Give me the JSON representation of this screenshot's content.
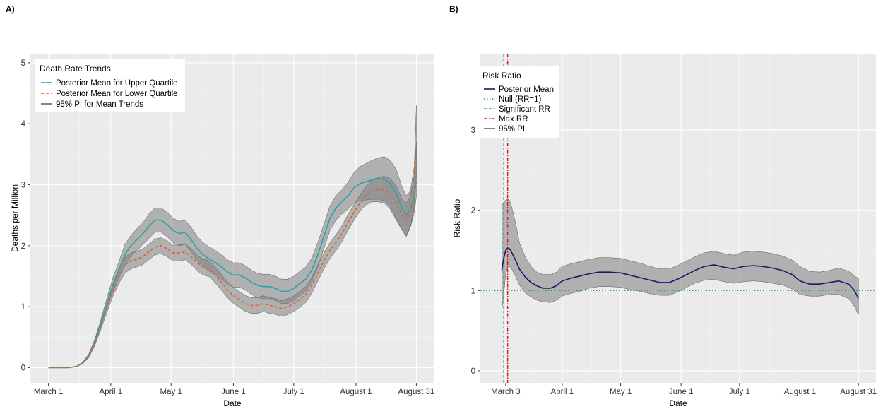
{
  "chart_data": [
    {
      "panel": "A)",
      "type": "line",
      "xlabel": "Date",
      "ylabel": "Deaths per Million",
      "xaxis": {
        "ticks": [
          {
            "day": 0,
            "label": "March 1"
          },
          {
            "day": 31,
            "label": "April 1"
          },
          {
            "day": 61,
            "label": "May 1"
          },
          {
            "day": 92,
            "label": "June 1"
          },
          {
            "day": 122,
            "label": "July 1"
          },
          {
            "day": 153,
            "label": "August 1"
          },
          {
            "day": 183,
            "label": "August 31"
          }
        ],
        "range_days": [
          -9,
          192
        ]
      },
      "ylim": [
        -0.25,
        5.15
      ],
      "yticks": [
        0,
        1,
        2,
        3,
        4,
        5
      ],
      "grid": true,
      "legend": {
        "title": "Death Rate Trends",
        "position": "top-left",
        "items": [
          {
            "label": "Posterior Mean for Upper Quartile",
            "color": "#2aa3a8",
            "dash": "solid"
          },
          {
            "label": "Posterior Mean for Lower Quartile",
            "color": "#e0622a",
            "dash": "dashed"
          },
          {
            "label": "95% PI for Mean Trends",
            "color": "#666666",
            "dash": "solid"
          }
        ]
      },
      "series": [
        {
          "name": "Posterior Mean for Upper Quartile",
          "color": "#2aa3a8",
          "dash": "solid",
          "x": [
            0,
            10,
            14,
            17,
            20,
            23,
            26,
            29,
            32,
            35,
            38,
            41,
            44,
            47,
            50,
            53,
            56,
            59,
            62,
            65,
            68,
            71,
            74,
            77,
            80,
            83,
            86,
            89,
            92,
            95,
            98,
            101,
            104,
            107,
            110,
            113,
            116,
            119,
            122,
            125,
            128,
            131,
            134,
            137,
            140,
            143,
            146,
            149,
            152,
            155,
            158,
            161,
            164,
            167,
            170,
            173,
            176,
            178,
            180,
            182,
            183
          ],
          "y": [
            0,
            0,
            0.02,
            0.08,
            0.2,
            0.42,
            0.72,
            1.05,
            1.35,
            1.6,
            1.85,
            2.0,
            2.1,
            2.2,
            2.32,
            2.42,
            2.42,
            2.35,
            2.25,
            2.2,
            2.22,
            2.1,
            1.95,
            1.85,
            1.78,
            1.72,
            1.65,
            1.57,
            1.52,
            1.52,
            1.47,
            1.4,
            1.35,
            1.33,
            1.33,
            1.3,
            1.25,
            1.25,
            1.3,
            1.38,
            1.45,
            1.6,
            1.85,
            2.15,
            2.45,
            2.62,
            2.72,
            2.82,
            2.95,
            3.02,
            3.05,
            3.08,
            3.1,
            3.1,
            3.02,
            2.85,
            2.6,
            2.5,
            2.6,
            2.8,
            3.05
          ],
          "pi_lower": [
            0,
            0,
            0.02,
            0.07,
            0.18,
            0.38,
            0.66,
            0.97,
            1.23,
            1.47,
            1.68,
            1.83,
            1.92,
            2.02,
            2.12,
            2.22,
            2.22,
            2.15,
            2.05,
            2.0,
            2.02,
            1.9,
            1.75,
            1.65,
            1.58,
            1.52,
            1.45,
            1.37,
            1.32,
            1.32,
            1.27,
            1.2,
            1.15,
            1.13,
            1.13,
            1.1,
            1.05,
            1.05,
            1.1,
            1.18,
            1.25,
            1.4,
            1.65,
            1.95,
            2.25,
            2.42,
            2.52,
            2.6,
            2.7,
            2.74,
            2.75,
            2.76,
            2.76,
            2.74,
            2.64,
            2.45,
            2.25,
            2.18,
            2.3,
            2.55,
            2.8
          ],
          "pi_upper": [
            0,
            0,
            0.02,
            0.09,
            0.22,
            0.46,
            0.78,
            1.13,
            1.47,
            1.73,
            2.02,
            2.17,
            2.28,
            2.38,
            2.52,
            2.62,
            2.62,
            2.55,
            2.45,
            2.4,
            2.42,
            2.3,
            2.15,
            2.05,
            1.98,
            1.92,
            1.85,
            1.77,
            1.72,
            1.72,
            1.67,
            1.6,
            1.55,
            1.53,
            1.53,
            1.5,
            1.45,
            1.45,
            1.5,
            1.58,
            1.65,
            1.8,
            2.05,
            2.35,
            2.65,
            2.82,
            2.92,
            3.04,
            3.2,
            3.3,
            3.35,
            3.4,
            3.44,
            3.46,
            3.4,
            3.25,
            2.95,
            2.82,
            2.9,
            3.3,
            4.3
          ]
        },
        {
          "name": "Posterior Mean for Lower Quartile",
          "color": "#e0622a",
          "dash": "dashed",
          "x": [
            0,
            10,
            14,
            17,
            20,
            23,
            26,
            29,
            32,
            35,
            38,
            41,
            44,
            47,
            50,
            53,
            56,
            59,
            62,
            65,
            68,
            71,
            74,
            77,
            80,
            83,
            86,
            89,
            92,
            95,
            98,
            101,
            104,
            107,
            110,
            113,
            116,
            119,
            122,
            125,
            128,
            131,
            134,
            137,
            140,
            143,
            146,
            149,
            152,
            155,
            158,
            161,
            164,
            167,
            170,
            173,
            176,
            178,
            180,
            182,
            183
          ],
          "y": [
            0,
            0,
            0.02,
            0.07,
            0.18,
            0.4,
            0.68,
            0.98,
            1.27,
            1.5,
            1.68,
            1.75,
            1.78,
            1.82,
            1.9,
            1.98,
            2.0,
            1.95,
            1.88,
            1.88,
            1.9,
            1.82,
            1.72,
            1.65,
            1.62,
            1.52,
            1.4,
            1.28,
            1.18,
            1.12,
            1.05,
            1.02,
            1.02,
            1.05,
            1.02,
            1.0,
            0.97,
            1.0,
            1.05,
            1.12,
            1.2,
            1.35,
            1.55,
            1.75,
            1.92,
            2.05,
            2.2,
            2.38,
            2.55,
            2.7,
            2.82,
            2.9,
            2.92,
            2.92,
            2.85,
            2.7,
            2.5,
            2.42,
            2.55,
            2.9,
            3.45
          ],
          "pi_lower": [
            0,
            0,
            0.02,
            0.06,
            0.16,
            0.36,
            0.62,
            0.9,
            1.17,
            1.38,
            1.55,
            1.62,
            1.65,
            1.69,
            1.77,
            1.85,
            1.87,
            1.82,
            1.75,
            1.75,
            1.77,
            1.69,
            1.59,
            1.52,
            1.49,
            1.39,
            1.27,
            1.15,
            1.05,
            0.99,
            0.92,
            0.89,
            0.89,
            0.92,
            0.89,
            0.87,
            0.84,
            0.87,
            0.92,
            0.99,
            1.07,
            1.22,
            1.42,
            1.62,
            1.79,
            1.92,
            2.07,
            2.25,
            2.42,
            2.57,
            2.67,
            2.72,
            2.72,
            2.7,
            2.6,
            2.42,
            2.25,
            2.15,
            2.3,
            2.65,
            3.15
          ],
          "pi_upper": [
            0,
            0,
            0.02,
            0.08,
            0.2,
            0.44,
            0.74,
            1.06,
            1.37,
            1.62,
            1.81,
            1.88,
            1.91,
            1.95,
            2.03,
            2.11,
            2.13,
            2.08,
            2.01,
            2.01,
            2.03,
            1.95,
            1.85,
            1.78,
            1.75,
            1.65,
            1.53,
            1.41,
            1.31,
            1.25,
            1.18,
            1.15,
            1.15,
            1.18,
            1.15,
            1.13,
            1.1,
            1.13,
            1.18,
            1.25,
            1.33,
            1.48,
            1.68,
            1.88,
            2.05,
            2.18,
            2.33,
            2.51,
            2.68,
            2.83,
            2.97,
            3.08,
            3.12,
            3.14,
            3.1,
            2.98,
            2.75,
            2.7,
            2.8,
            3.15,
            3.7
          ]
        }
      ]
    },
    {
      "panel": "B)",
      "type": "line",
      "xlabel": "Date",
      "ylabel": "Risk Ratio",
      "xaxis": {
        "ticks": [
          {
            "day": 2,
            "label": "March 3"
          },
          {
            "day": 31,
            "label": "April 1"
          },
          {
            "day": 61,
            "label": "May 1"
          },
          {
            "day": 92,
            "label": "June 1"
          },
          {
            "day": 122,
            "label": "July 1"
          },
          {
            "day": 153,
            "label": "August 1"
          },
          {
            "day": 183,
            "label": "August 31"
          }
        ],
        "range_days": [
          -11,
          192
        ]
      },
      "ylim": [
        -0.15,
        3.95
      ],
      "yticks": [
        0,
        1,
        2,
        3
      ],
      "grid": true,
      "legend": {
        "title": "Risk Ratio",
        "position": "top-left",
        "items": [
          {
            "label": "Posterior Mean",
            "color": "#1a1a6e",
            "dash": "solid"
          },
          {
            "label": "Null (RR=1)",
            "color": "#2e9e3e",
            "dash": "dotted"
          },
          {
            "label": "Significant RR",
            "color": "#2aa3a8",
            "dash": "dashed"
          },
          {
            "label": "Max RR",
            "color": "#e0101a",
            "dash": "dashdot"
          },
          {
            "label": "95% PI",
            "color": "#666666",
            "dash": "solid"
          }
        ]
      },
      "reference_lines": {
        "null_rr": 1,
        "significant_rr_day": 1,
        "max_rr_day": 3
      },
      "series": [
        {
          "name": "Posterior Mean",
          "color": "#1a1a6e",
          "dash": "solid",
          "x": [
            0,
            1,
            2,
            3,
            4,
            5,
            7,
            9,
            12,
            15,
            18,
            21,
            25,
            28,
            31,
            35,
            40,
            45,
            50,
            55,
            61,
            66,
            71,
            76,
            81,
            86,
            91,
            95,
            99,
            104,
            109,
            114,
            119,
            124,
            129,
            134,
            139,
            144,
            149,
            153,
            158,
            163,
            168,
            173,
            178,
            181,
            183
          ],
          "y": [
            1.25,
            1.4,
            1.5,
            1.53,
            1.52,
            1.48,
            1.38,
            1.27,
            1.17,
            1.1,
            1.06,
            1.03,
            1.03,
            1.06,
            1.12,
            1.15,
            1.18,
            1.21,
            1.23,
            1.23,
            1.22,
            1.19,
            1.16,
            1.13,
            1.1,
            1.1,
            1.15,
            1.2,
            1.25,
            1.3,
            1.32,
            1.29,
            1.27,
            1.3,
            1.31,
            1.3,
            1.28,
            1.25,
            1.2,
            1.12,
            1.08,
            1.08,
            1.1,
            1.12,
            1.08,
            1.0,
            0.9
          ],
          "pi_lower": [
            0.75,
            0.95,
            1.2,
            1.3,
            1.3,
            1.27,
            1.18,
            1.07,
            0.97,
            0.92,
            0.88,
            0.86,
            0.85,
            0.88,
            0.93,
            0.96,
            0.99,
            1.03,
            1.05,
            1.05,
            1.04,
            1.01,
            0.99,
            0.96,
            0.94,
            0.94,
            0.99,
            1.04,
            1.09,
            1.13,
            1.14,
            1.11,
            1.09,
            1.11,
            1.12,
            1.11,
            1.09,
            1.07,
            1.02,
            0.95,
            0.93,
            0.93,
            0.95,
            0.95,
            0.9,
            0.8,
            0.7
          ],
          "pi_upper": [
            2.05,
            2.1,
            2.13,
            2.14,
            2.12,
            2.05,
            1.85,
            1.6,
            1.42,
            1.3,
            1.23,
            1.2,
            1.2,
            1.23,
            1.3,
            1.33,
            1.36,
            1.39,
            1.41,
            1.41,
            1.4,
            1.37,
            1.34,
            1.3,
            1.27,
            1.27,
            1.32,
            1.37,
            1.42,
            1.47,
            1.49,
            1.46,
            1.44,
            1.48,
            1.49,
            1.48,
            1.46,
            1.43,
            1.38,
            1.3,
            1.24,
            1.23,
            1.25,
            1.28,
            1.24,
            1.18,
            1.15
          ]
        }
      ]
    }
  ]
}
